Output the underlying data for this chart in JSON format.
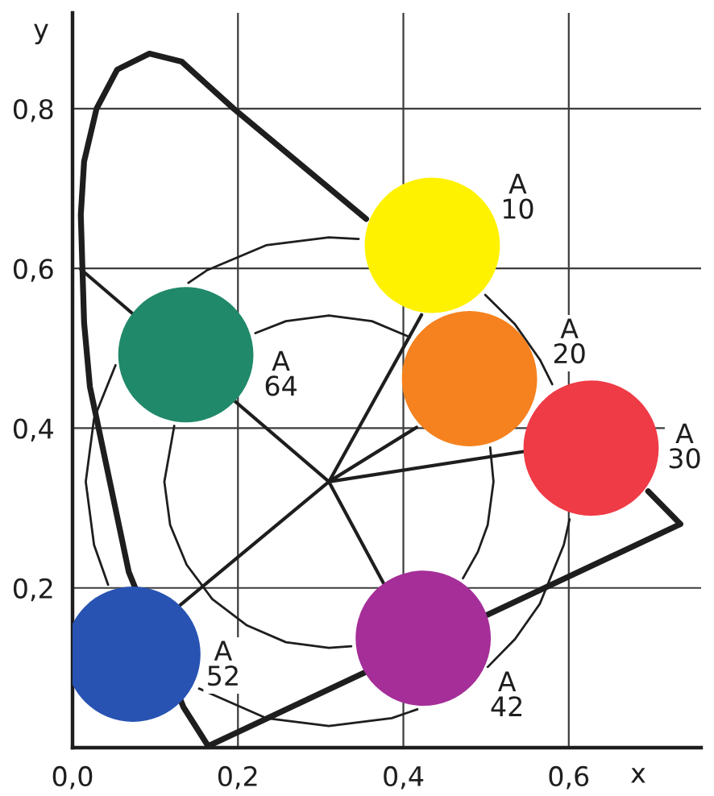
{
  "chart_data": {
    "type": "line",
    "xlabel": "x",
    "ylabel": "y",
    "xlim": [
      0,
      0.76
    ],
    "ylim": [
      0,
      0.92
    ],
    "xticks": [
      {
        "value": 0,
        "label": "0,0"
      },
      {
        "value": 0.2,
        "label": "0,2"
      },
      {
        "value": 0.4,
        "label": "0,4"
      },
      {
        "value": 0.6,
        "label": "0,6"
      }
    ],
    "yticks": [
      {
        "value": 0.2,
        "label": "0,2"
      },
      {
        "value": 0.4,
        "label": "0,4"
      },
      {
        "value": 0.6,
        "label": "0,6"
      },
      {
        "value": 0.8,
        "label": "0,8"
      }
    ],
    "grid": true,
    "series": [
      {
        "color": "#1e1e1e",
        "x": [
          0.696,
          0.735,
          0.164,
          0.134,
          0.068,
          0.021,
          0.014,
          0.01,
          0.014,
          0.029,
          0.054,
          0.093,
          0.132,
          0.195,
          0.355
        ],
        "values": [
          0.321,
          0.28,
          0.002,
          0.051,
          0.22,
          0.452,
          0.532,
          0.667,
          0.734,
          0.8,
          0.849,
          0.869,
          0.859,
          0.8,
          0.662
        ]
      },
      {
        "color": "#1e1e1e",
        "x": [
          0.01,
          0.31,
          0.422,
          0.31,
          0.416,
          0.31,
          0.547,
          0.31,
          0.377,
          0.31,
          0.126
        ],
        "values": [
          0.599,
          0.333,
          0.542,
          0.333,
          0.401,
          0.333,
          0.371,
          0.333,
          0.204,
          0.333,
          0.175
        ]
      },
      {
        "color": "#1e1e1e",
        "x": [
          0.346,
          0.31,
          0.234,
          0.163,
          0.14
        ],
        "values": [
          0.637,
          0.639,
          0.629,
          0.598,
          0.582
        ]
      },
      {
        "color": "#1e1e1e",
        "x": [
          0.052,
          0.026,
          0.016,
          0.026,
          0.043
        ],
        "values": [
          0.479,
          0.412,
          0.333,
          0.254,
          0.204
        ]
      },
      {
        "color": "#1e1e1e",
        "x": [
          0.153,
          0.234,
          0.31,
          0.386,
          0.417
        ],
        "values": [
          0.074,
          0.037,
          0.027,
          0.037,
          0.048
        ]
      },
      {
        "color": "#1e1e1e",
        "x": [
          0.502,
          0.535,
          0.565,
          0.594,
          0.601
        ],
        "values": [
          0.101,
          0.136,
          0.18,
          0.254,
          0.286
        ]
      },
      {
        "color": "#1e1e1e",
        "x": [
          0.58,
          0.565,
          0.535,
          0.499
        ],
        "values": [
          0.455,
          0.486,
          0.53,
          0.567
        ]
      },
      {
        "color": "#1e1e1e",
        "x": [
          0.408,
          0.362,
          0.31,
          0.258,
          0.221
        ],
        "values": [
          0.514,
          0.534,
          0.541,
          0.534,
          0.519
        ]
      },
      {
        "color": "#1e1e1e",
        "x": [
          0.123,
          0.111,
          0.118,
          0.138,
          0.169,
          0.211,
          0.258,
          0.31,
          0.337
        ],
        "values": [
          0.403,
          0.333,
          0.279,
          0.229,
          0.186,
          0.153,
          0.132,
          0.125,
          0.127
        ]
      },
      {
        "color": "#1e1e1e",
        "x": [
          0.472,
          0.49,
          0.502,
          0.509,
          0.505
        ],
        "values": [
          0.212,
          0.245,
          0.279,
          0.333,
          0.376
        ]
      },
      {
        "type": "bubble",
        "name": "A\n10",
        "color": "#fff200",
        "marker": "circle",
        "x": [
          0.435
        ],
        "values": [
          0.629
        ],
        "sizes": [
          1
        ]
      },
      {
        "type": "bubble",
        "name": "A\n20",
        "color": "#f5821f",
        "marker": "circle",
        "x": [
          0.48
        ],
        "values": [
          0.462
        ],
        "sizes": [
          1
        ]
      },
      {
        "type": "bubble",
        "name": "A\n30",
        "color": "#ef3b46",
        "marker": "circle",
        "x": [
          0.627
        ],
        "values": [
          0.375
        ],
        "sizes": [
          1
        ]
      },
      {
        "type": "bubble",
        "name": "A\n42",
        "color": "#a52e98",
        "marker": "circle",
        "x": [
          0.424
        ],
        "values": [
          0.137
        ],
        "sizes": [
          1
        ]
      },
      {
        "type": "bubble",
        "name": "A\n52",
        "color": "#2853b2",
        "marker": "circle",
        "x": [
          0.073
        ],
        "values": [
          0.117
        ],
        "sizes": [
          1
        ]
      },
      {
        "type": "bubble",
        "name": "A\n64",
        "color": "#20896a",
        "marker": "circle",
        "x": [
          0.137
        ],
        "values": [
          0.492
        ],
        "sizes": [
          1
        ]
      }
    ]
  }
}
